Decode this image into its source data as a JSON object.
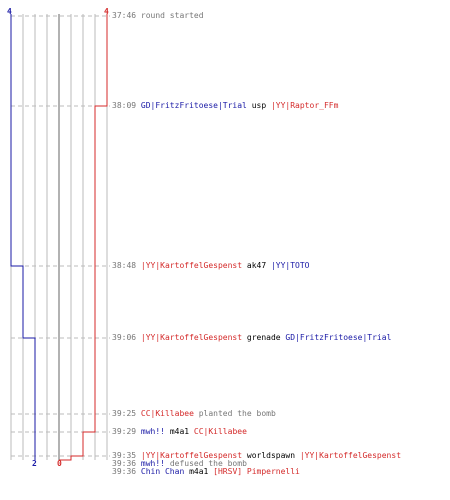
{
  "axis": {
    "top_blue": "4",
    "top_red": "4",
    "bottom_blue": "2",
    "bottom_red": "0"
  },
  "colors": {
    "blue": "#1a1aa6",
    "red": "#d42a2a",
    "grid": "#bbbbbb",
    "dash": "#bbbbbb"
  },
  "events": [
    {
      "time": "37:46",
      "parts": [
        {
          "t": "round started",
          "c": "gray"
        }
      ]
    },
    {
      "time": "38:09",
      "parts": [
        {
          "t": "GD|FritzFritoese|Trial",
          "c": "blue"
        },
        {
          "t": " usp ",
          "c": "black"
        },
        {
          "t": "|YY|Raptor_FFm",
          "c": "red"
        }
      ]
    },
    {
      "time": "38:48",
      "parts": [
        {
          "t": "|YY|KartoffelGespenst",
          "c": "red"
        },
        {
          "t": " ak47 ",
          "c": "black"
        },
        {
          "t": "|YY|TOTO",
          "c": "blue"
        }
      ]
    },
    {
      "time": "39:06",
      "parts": [
        {
          "t": "|YY|KartoffelGespenst",
          "c": "red"
        },
        {
          "t": " grenade ",
          "c": "black"
        },
        {
          "t": "GD|FritzFritoese|Trial",
          "c": "blue"
        }
      ]
    },
    {
      "time": "39:25",
      "parts": [
        {
          "t": "CC|Killabee",
          "c": "red"
        },
        {
          "t": " planted the bomb",
          "c": "gray"
        }
      ]
    },
    {
      "time": "39:29",
      "parts": [
        {
          "t": "mwh!!",
          "c": "blue"
        },
        {
          "t": " m4a1 ",
          "c": "black"
        },
        {
          "t": "CC|Killabee",
          "c": "red"
        }
      ]
    },
    {
      "time": "39:35",
      "parts": [
        {
          "t": "|YY|KartoffelGespenst",
          "c": "red"
        },
        {
          "t": " worldspawn ",
          "c": "black"
        },
        {
          "t": "|YY|KartoffelGespenst",
          "c": "red"
        }
      ]
    },
    {
      "time": "39:36",
      "parts": [
        {
          "t": "mwh!!",
          "c": "blue"
        },
        {
          "t": " defused the bomb",
          "c": "gray"
        }
      ]
    },
    {
      "time": "39:36",
      "parts": [
        {
          "t": "Chin Chan",
          "c": "blue"
        },
        {
          "t": " m4a1 ",
          "c": "black"
        },
        {
          "t": "[HRSV] Pimpernelli",
          "c": "red"
        }
      ]
    }
  ]
}
